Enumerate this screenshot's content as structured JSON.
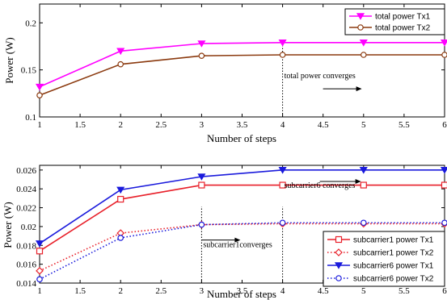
{
  "chart_data": [
    {
      "type": "line",
      "xlabel": "Number of steps",
      "ylabel": "Power (W)",
      "xlim": [
        1,
        6
      ],
      "ylim": [
        0.1,
        0.22
      ],
      "xticks": [
        "1",
        "1.5",
        "2",
        "2.5",
        "3",
        "3.5",
        "4",
        "4.5",
        "5",
        "5.5",
        "6"
      ],
      "yticks": [
        "0.1",
        "0.15",
        "0.2"
      ],
      "legend_position": "top-right",
      "x": [
        1,
        2,
        3,
        4,
        5,
        6
      ],
      "series": [
        {
          "name": "total power Tx1",
          "values": [
            0.132,
            0.17,
            0.178,
            0.179,
            0.179,
            0.179
          ],
          "color": "#ff00ff",
          "marker": "triangle-down",
          "line": "solid",
          "fill": "#ff00ff"
        },
        {
          "name": "total power Tx2",
          "values": [
            0.123,
            0.156,
            0.165,
            0.166,
            0.166,
            0.166
          ],
          "color": "#8b3a0f",
          "marker": "circle",
          "line": "solid",
          "fill": "none"
        }
      ],
      "annotations": [
        {
          "text": "total power converges",
          "at_x": 4,
          "at_y": 0.141
        }
      ],
      "vline_x": 4
    },
    {
      "type": "line",
      "xlabel": "Number of steps",
      "ylabel": "Power (W)",
      "xlim": [
        1,
        6
      ],
      "ylim": [
        0.014,
        0.0265
      ],
      "xticks": [
        "1",
        "1.5",
        "2",
        "2.5",
        "3",
        "3.5",
        "4",
        "4.5",
        "5",
        "5.5",
        "6"
      ],
      "yticks": [
        "0.014",
        "0.016",
        "0.018",
        "0.02",
        "0.022",
        "0.024",
        "0.026"
      ],
      "legend_position": "bottom-right",
      "x": [
        1,
        2,
        3,
        4,
        5,
        6
      ],
      "series": [
        {
          "name": "subcarrier1 power Tx1",
          "values": [
            0.0174,
            0.0229,
            0.0244,
            0.0244,
            0.0244,
            0.0244
          ],
          "color": "#e8202a",
          "marker": "square",
          "line": "solid",
          "fill": "none"
        },
        {
          "name": "subcarrier1 power Tx2",
          "values": [
            0.0153,
            0.0193,
            0.0202,
            0.0203,
            0.0203,
            0.0203
          ],
          "color": "#e8202a",
          "marker": "diamond",
          "line": "dotted",
          "fill": "none"
        },
        {
          "name": "subcarrier6 power Tx1",
          "values": [
            0.0182,
            0.0239,
            0.0253,
            0.026,
            0.026,
            0.026
          ],
          "color": "#1a1adc",
          "marker": "triangle-down",
          "line": "solid",
          "fill": "#1a1adc"
        },
        {
          "name": "subcarrier6 power Tx2",
          "values": [
            0.0144,
            0.0188,
            0.0202,
            0.0204,
            0.0204,
            0.0204
          ],
          "color": "#1a1adc",
          "marker": "circle",
          "line": "dotted",
          "fill": "none"
        }
      ],
      "annotations": [
        {
          "text": "subcarrier6 converges",
          "at_x": 4,
          "at_y": 0.0241
        },
        {
          "text": "subcarrier1converges",
          "at_x": 3,
          "at_y": 0.0178
        }
      ],
      "vlines_x": [
        3,
        4
      ]
    }
  ]
}
